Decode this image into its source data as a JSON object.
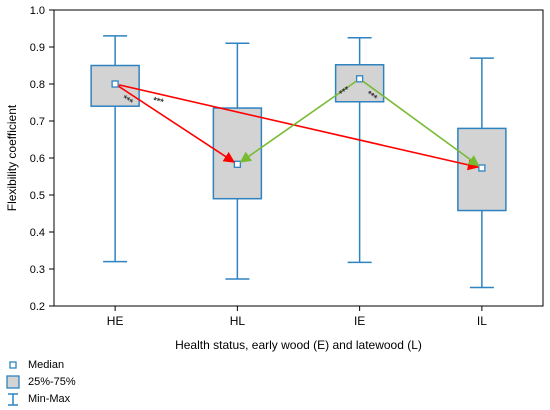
{
  "chart_data": {
    "type": "boxplot",
    "title": "",
    "xlabel": "Health status, early wood (E) and latewood (L)",
    "ylabel": "Flexibility coefficient",
    "ylim": [
      0.2,
      1.0
    ],
    "yticks": [
      0.2,
      0.3,
      0.4,
      0.5,
      0.6,
      0.7,
      0.8,
      0.9,
      1.0
    ],
    "ytick_labels": [
      "0.2",
      "0.3",
      "0.4",
      "0.5",
      "0.6",
      "0.7",
      "0.8",
      "0.9",
      "1.0"
    ],
    "grid": false,
    "categories": [
      "HE",
      "HL",
      "IE",
      "IL"
    ],
    "boxes": [
      {
        "category": "HE",
        "min": 0.32,
        "q1": 0.74,
        "median": 0.8,
        "q3": 0.85,
        "max": 0.93
      },
      {
        "category": "HL",
        "min": 0.273,
        "q1": 0.49,
        "median": 0.583,
        "q3": 0.735,
        "max": 0.91
      },
      {
        "category": "IE",
        "min": 0.318,
        "q1": 0.752,
        "median": 0.814,
        "q3": 0.852,
        "max": 0.925
      },
      {
        "category": "IL",
        "min": 0.25,
        "q1": 0.458,
        "median": 0.573,
        "q3": 0.68,
        "max": 0.87
      }
    ],
    "comparisons": [
      {
        "from": "HE",
        "to": "HL",
        "color": "#ff0000",
        "label": "***"
      },
      {
        "from": "HE",
        "to": "IL",
        "color": "#ff0000",
        "label": "***"
      },
      {
        "from": "IE",
        "to": "HL",
        "color": "#77bb33",
        "label": "***"
      },
      {
        "from": "IE",
        "to": "IL",
        "color": "#77bb33",
        "label": "***"
      }
    ],
    "legend": {
      "placement": "bottom-left",
      "items": [
        {
          "symbol": "median-square",
          "label": "Median"
        },
        {
          "symbol": "box",
          "label": "25%-75%"
        },
        {
          "symbol": "whisker",
          "label": "Min-Max"
        }
      ]
    },
    "colors": {
      "box_fill": "#d3d3d3",
      "box_stroke": "#2e83c0",
      "whisker": "#2e83c0",
      "median_marker": "#2e83c0",
      "axis": "#000000"
    }
  }
}
